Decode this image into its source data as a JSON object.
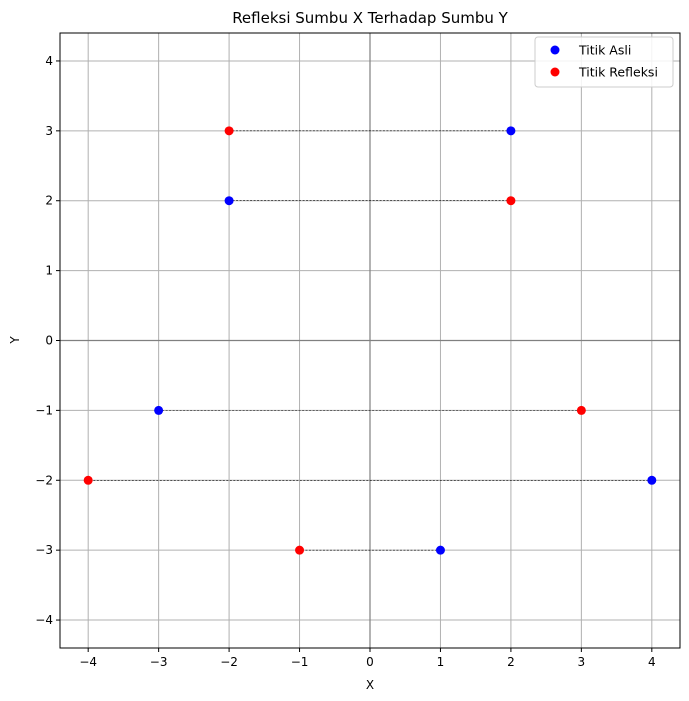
{
  "chart_data": {
    "type": "scatter",
    "title": "Refleksi Sumbu X Terhadap Sumbu Y",
    "xlabel": "X",
    "ylabel": "Y",
    "xlim": [
      -4.4,
      4.4
    ],
    "ylim": [
      -4.4,
      4.4
    ],
    "xticks": [
      -4,
      -3,
      -2,
      -1,
      0,
      1,
      2,
      3,
      4
    ],
    "yticks": [
      -4,
      -3,
      -2,
      -1,
      0,
      1,
      2,
      3,
      4
    ],
    "grid": true,
    "legend_position": "top-right",
    "series": [
      {
        "name": "Titik Asli",
        "color": "#0000ff",
        "points": [
          [
            2,
            3
          ],
          [
            -2,
            2
          ],
          [
            -3,
            -1
          ],
          [
            4,
            -2
          ],
          [
            1,
            -3
          ]
        ]
      },
      {
        "name": "Titik Refleksi",
        "color": "#ff0000",
        "points": [
          [
            -2,
            3
          ],
          [
            2,
            2
          ],
          [
            3,
            -1
          ],
          [
            -4,
            -2
          ],
          [
            -1,
            -3
          ]
        ]
      }
    ]
  }
}
